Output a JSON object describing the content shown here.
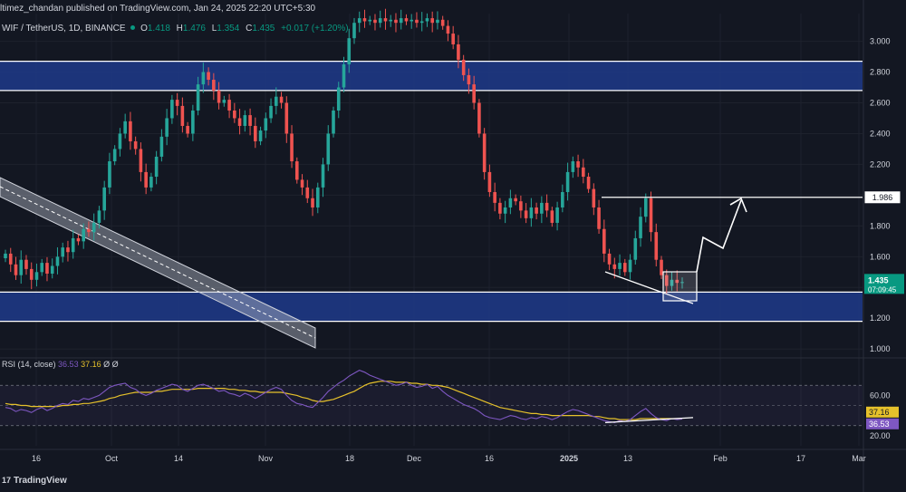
{
  "header": {
    "published_line": "ltimez_chandan published on TradingView.com, Jan 24, 2025 22:20 UTC+5:30"
  },
  "symbol": {
    "name": "WIF / TetherUS, 1D, BINANCE",
    "o_label": "O",
    "o_value": "1.418",
    "h_label": "H",
    "h_value": "1.476",
    "l_label": "L",
    "l_value": "1.354",
    "c_label": "C",
    "c_value": "1.435",
    "change": "+0.017 (+1.20%)"
  },
  "rsi_legend": {
    "label": "RSI (14, close)",
    "value1": "36.53",
    "value2": "37.16",
    "suffix": "Ø  Ø"
  },
  "branding": {
    "name": "TradingView",
    "mark": "17"
  },
  "colors": {
    "background": "#131722",
    "up_candle": "#26a69a",
    "down_candle": "#ef5350",
    "zone_fill": "#1f3a8a",
    "zone_border": "#ffffff",
    "rsi_line": "#7e57c2",
    "rsi_ma": "#e6c12b",
    "price_tag": "#089981",
    "text": "#d1d4dc"
  },
  "chart_data": {
    "type": "candlestick",
    "price_axis": {
      "ticks": [
        "3.000",
        "2.800",
        "2.600",
        "2.400",
        "2.200",
        "2.000",
        "1.800",
        "1.600",
        "1.400",
        "1.200",
        "1.000"
      ],
      "range": [
        0.96,
        3.18
      ]
    },
    "x_axis": {
      "ticks": [
        "16",
        "Oct",
        "14",
        "Nov",
        "18",
        "Dec",
        "16",
        "2025",
        "13",
        "Feb",
        "17",
        "Mar"
      ]
    },
    "zones": [
      {
        "name": "resistance",
        "from": 2.68,
        "to": 2.87
      },
      {
        "name": "support",
        "from": 1.18,
        "to": 1.37
      }
    ],
    "levels": [
      {
        "value": 1.986,
        "label": "1.986"
      }
    ],
    "last_price": {
      "value": 1.435,
      "label": "1.435",
      "countdown": "07:09:45"
    },
    "candles_close": [
      1.62,
      1.55,
      1.48,
      1.58,
      1.52,
      1.45,
      1.5,
      1.56,
      1.49,
      1.54,
      1.6,
      1.66,
      1.63,
      1.72,
      1.7,
      1.78,
      1.76,
      1.82,
      1.9,
      2.05,
      2.22,
      2.3,
      2.4,
      2.48,
      2.35,
      2.3,
      2.15,
      2.05,
      2.12,
      2.25,
      2.38,
      2.5,
      2.62,
      2.58,
      2.45,
      2.4,
      2.55,
      2.72,
      2.8,
      2.75,
      2.68,
      2.6,
      2.62,
      2.55,
      2.5,
      2.45,
      2.52,
      2.45,
      2.35,
      2.42,
      2.5,
      2.58,
      2.64,
      2.6,
      2.4,
      2.22,
      2.1,
      2.05,
      1.98,
      1.92,
      2.05,
      2.2,
      2.4,
      2.55,
      2.7,
      2.85,
      3.02,
      3.12,
      3.15,
      3.13,
      3.14,
      3.12,
      3.15,
      3.13,
      3.14,
      3.12,
      3.15,
      3.13,
      3.14,
      3.12,
      3.13,
      3.15,
      3.12,
      3.14,
      3.1,
      3.05,
      2.98,
      2.88,
      2.78,
      2.72,
      2.6,
      2.4,
      2.15,
      2.02,
      1.95,
      1.88,
      1.92,
      1.98,
      1.96,
      1.9,
      1.85,
      1.92,
      1.88,
      1.95,
      1.9,
      1.82,
      1.92,
      2.02,
      2.15,
      2.22,
      2.18,
      2.12,
      2.04,
      1.92,
      1.78,
      1.62,
      1.55,
      1.52,
      1.56,
      1.5,
      1.58,
      1.72,
      1.86,
      1.98,
      1.76,
      1.58,
      1.48,
      1.41,
      1.45,
      1.43,
      1.435
    ],
    "rsi": {
      "levels": [
        {
          "label": "60.00",
          "value": 60
        },
        {
          "label": "20.00",
          "value": 20
        }
      ],
      "band": [
        30,
        70
      ],
      "last_rsi": 36.53,
      "last_ma": 37.16,
      "values": [
        48,
        47,
        44,
        46,
        45,
        43,
        46,
        48,
        45,
        47,
        50,
        52,
        51,
        55,
        54,
        57,
        56,
        58,
        60,
        64,
        68,
        70,
        71,
        72,
        68,
        66,
        62,
        60,
        62,
        65,
        67,
        69,
        71,
        70,
        66,
        64,
        67,
        70,
        71,
        69,
        67,
        64,
        65,
        62,
        61,
        59,
        62,
        60,
        57,
        60,
        63,
        66,
        68,
        66,
        60,
        55,
        52,
        51,
        49,
        48,
        53,
        58,
        64,
        68,
        72,
        75,
        79,
        82,
        85,
        83,
        80,
        78,
        76,
        74,
        72,
        70,
        71,
        73,
        70,
        68,
        69,
        71,
        67,
        69,
        64,
        60,
        57,
        54,
        51,
        49,
        47,
        44,
        40,
        38,
        37,
        36,
        38,
        40,
        39,
        37,
        36,
        38,
        37,
        39,
        38,
        36,
        38,
        41,
        44,
        46,
        45,
        43,
        41,
        39,
        37,
        35,
        34,
        33,
        35,
        34,
        36,
        40,
        44,
        47,
        42,
        38,
        36,
        35,
        37,
        36,
        36.53
      ],
      "ma": [
        52,
        51,
        51,
        50,
        50,
        49,
        49,
        49,
        49,
        49,
        49,
        50,
        50,
        51,
        51,
        52,
        52,
        53,
        54,
        55,
        57,
        58,
        60,
        61,
        62,
        63,
        63,
        63,
        63,
        64,
        64,
        65,
        66,
        66,
        66,
        66,
        66,
        67,
        67,
        67,
        67,
        67,
        67,
        66,
        66,
        65,
        65,
        64,
        64,
        63,
        63,
        63,
        63,
        63,
        62,
        61,
        60,
        58,
        57,
        55,
        54,
        54,
        55,
        56,
        58,
        60,
        62,
        64,
        67,
        70,
        72,
        73,
        74,
        74,
        74,
        73,
        73,
        73,
        72,
        72,
        71,
        71,
        70,
        70,
        69,
        68,
        66,
        64,
        62,
        60,
        58,
        56,
        54,
        52,
        50,
        48,
        47,
        46,
        45,
        44,
        43,
        42,
        42,
        41,
        41,
        40,
        40,
        40,
        40,
        40,
        40,
        40,
        40,
        39,
        39,
        38,
        37,
        37,
        36,
        36,
        36,
        36,
        37,
        37,
        37,
        37,
        37,
        37,
        37,
        37,
        37.16
      ]
    }
  }
}
